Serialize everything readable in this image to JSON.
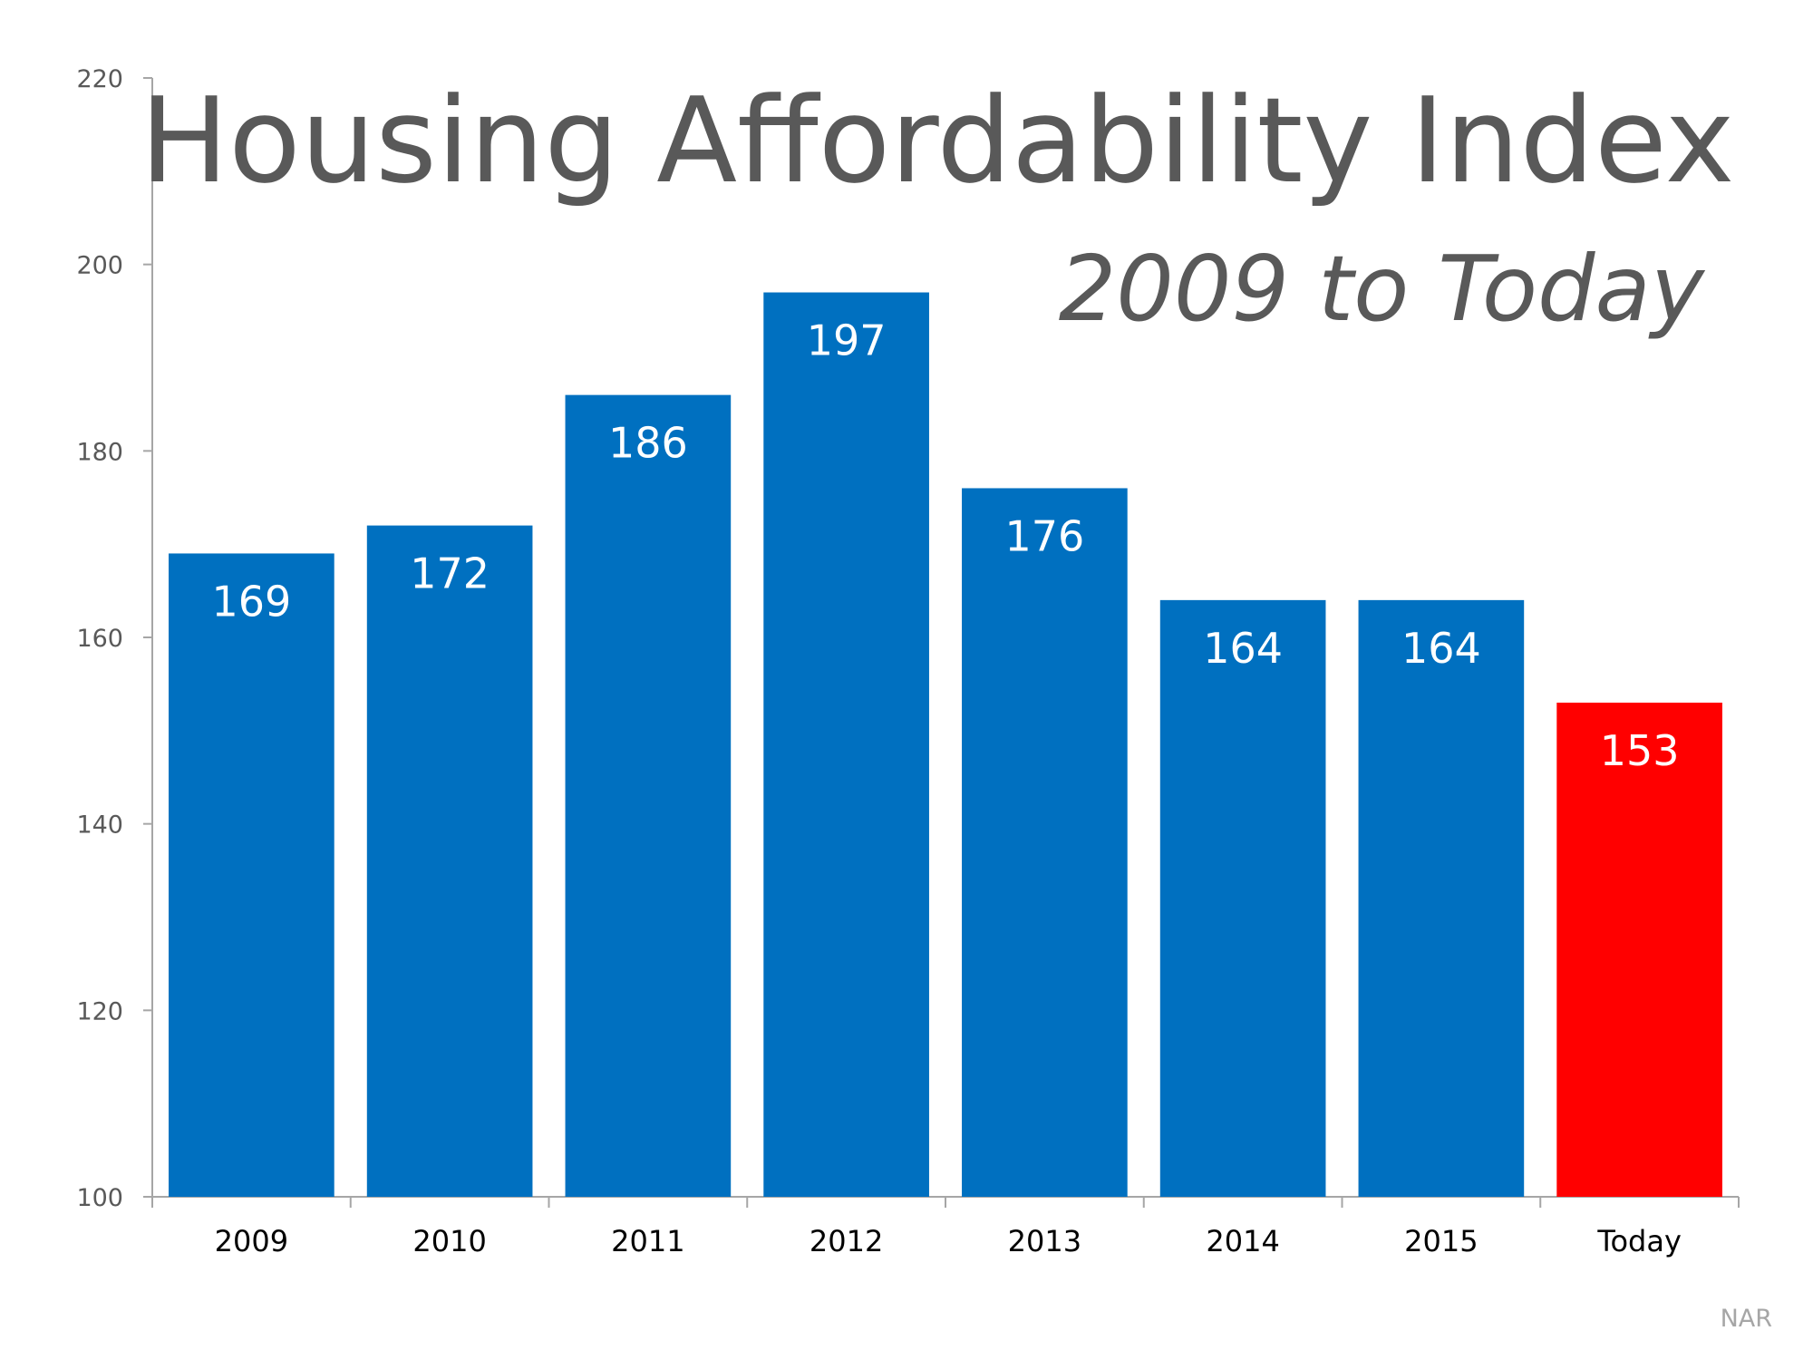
{
  "chart_data": {
    "type": "bar",
    "title": "Housing Affordability Index",
    "subtitle": "2009 to Today",
    "categories": [
      "2009",
      "2010",
      "2011",
      "2012",
      "2013",
      "2014",
      "2015",
      "Today"
    ],
    "values": [
      169,
      172,
      186,
      197,
      176,
      164,
      164,
      153
    ],
    "data_labels": [
      "169",
      "172",
      "186",
      "197",
      "176",
      "164",
      "164",
      "153"
    ],
    "ylim": [
      100,
      220
    ],
    "yticks": [
      "100",
      "120",
      "140",
      "160",
      "180",
      "200",
      "220"
    ],
    "grid": false,
    "legend": "none",
    "bar_colors": [
      "#0070C0",
      "#0070C0",
      "#0070C0",
      "#0070C0",
      "#0070C0",
      "#0070C0",
      "#0070C0",
      "#FF0000"
    ],
    "source": "NAR"
  }
}
